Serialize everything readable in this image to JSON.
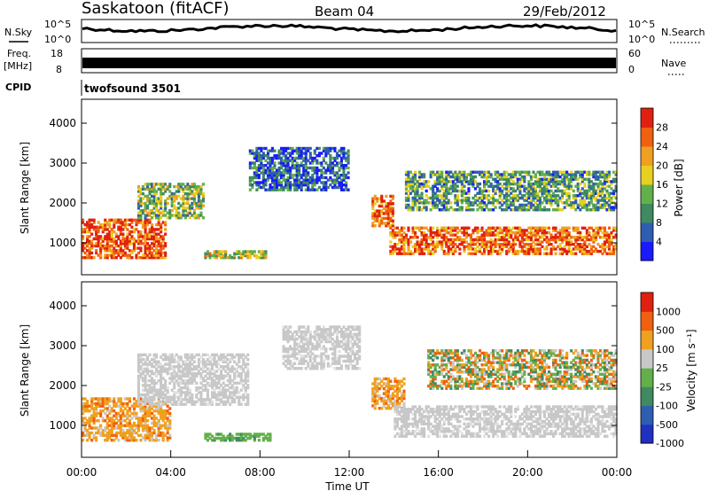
{
  "header": {
    "station": "Saskatoon (fitACF)",
    "beam": "Beam 04",
    "date": "29/Feb/2012"
  },
  "panels": {
    "nsky": {
      "label": "N.Sky",
      "ticks_left": [
        "10^5",
        "10^0"
      ],
      "right_label": "N.Search",
      "ticks_right": [
        "10^5",
        "10^0"
      ]
    },
    "freq": {
      "label_top": "Freq.",
      "label_bottom": "[MHz]",
      "ticks_left": [
        "18",
        "8"
      ],
      "right_label": "Nave",
      "ticks_right": [
        "60",
        "0"
      ]
    },
    "cpid": {
      "label": "CPID",
      "value": "twofsound 3501"
    }
  },
  "chart_data": [
    {
      "type": "heatmap",
      "name": "power",
      "ylabel": "Slant Range [km]",
      "yticks": [
        1000,
        2000,
        3000,
        4000
      ],
      "ylim": [
        200,
        4600
      ],
      "xlim_hours": [
        0,
        24
      ],
      "colorbar": {
        "label": "Power [dB]",
        "ticks": [
          "28",
          "24",
          "20",
          "16",
          "12",
          "8",
          "4"
        ],
        "colors": [
          "#1a1aff",
          "#2f5db0",
          "#3f8a60",
          "#62b04a",
          "#e8d020",
          "#f0a020",
          "#f06010",
          "#e02010"
        ]
      },
      "regions": [
        {
          "x": [
            0,
            3.8
          ],
          "y": [
            600,
            1600
          ],
          "level": 0.85
        },
        {
          "x": [
            2.5,
            5.5
          ],
          "y": [
            1600,
            2500
          ],
          "level": 0.45
        },
        {
          "x": [
            5.5,
            8.3
          ],
          "y": [
            600,
            800
          ],
          "level": 0.55
        },
        {
          "x": [
            7.5,
            12.0
          ],
          "y": [
            2300,
            3400
          ],
          "level": 0.2
        },
        {
          "x": [
            13.0,
            14.0
          ],
          "y": [
            1400,
            2200
          ],
          "level": 0.8
        },
        {
          "x": [
            13.8,
            24
          ],
          "y": [
            700,
            1400
          ],
          "level": 0.82
        },
        {
          "x": [
            14.5,
            24
          ],
          "y": [
            1800,
            2800
          ],
          "level": 0.35
        }
      ]
    },
    {
      "type": "heatmap",
      "name": "velocity",
      "ylabel": "Slant Range [km]",
      "yticks": [
        1000,
        2000,
        3000,
        4000
      ],
      "ylim": [
        200,
        4600
      ],
      "xlim_hours": [
        0,
        24
      ],
      "xticks": [
        "00:00",
        "04:00",
        "08:00",
        "12:00",
        "16:00",
        "20:00",
        "00:00"
      ],
      "xlabel": "Time UT",
      "colorbar": {
        "label": "Velocity [m s⁻¹]",
        "ticks": [
          "1000",
          "500",
          "100",
          "25",
          "-25",
          "-100",
          "-500",
          "-1000"
        ],
        "colors": [
          "#2030c0",
          "#2f5db0",
          "#3f8a60",
          "#62b04a",
          "#c8c8c8",
          "#f0a020",
          "#f06010",
          "#e02010"
        ]
      },
      "regions": [
        {
          "x": [
            0,
            4.0
          ],
          "y": [
            600,
            1700
          ],
          "level": "orange"
        },
        {
          "x": [
            2.5,
            7.5
          ],
          "y": [
            1500,
            2800
          ],
          "level": "gray"
        },
        {
          "x": [
            5.5,
            8.5
          ],
          "y": [
            600,
            800
          ],
          "level": "green"
        },
        {
          "x": [
            9.0,
            12.5
          ],
          "y": [
            2400,
            3500
          ],
          "level": "gray"
        },
        {
          "x": [
            13.0,
            14.5
          ],
          "y": [
            1400,
            2200
          ],
          "level": "orange"
        },
        {
          "x": [
            14.0,
            24
          ],
          "y": [
            700,
            1500
          ],
          "level": "gray"
        },
        {
          "x": [
            15.5,
            24
          ],
          "y": [
            1900,
            2900
          ],
          "level": "mixed"
        }
      ]
    }
  ]
}
